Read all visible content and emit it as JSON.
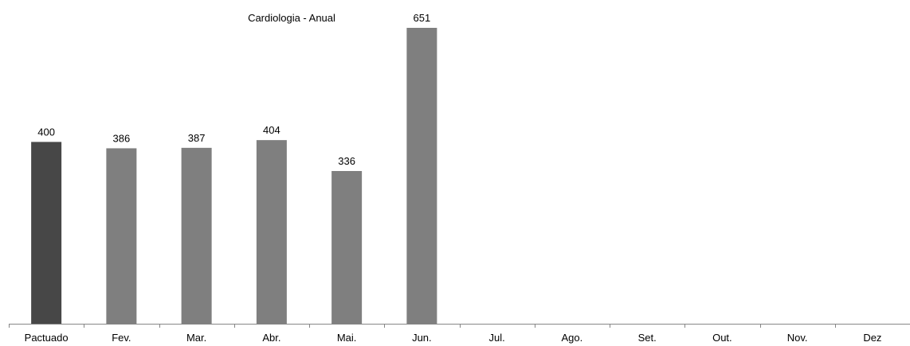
{
  "chart_data": {
    "type": "bar",
    "title": "Cardiologia - Anual",
    "xlabel": "",
    "ylabel": "",
    "categories": [
      "Pactuado",
      "Fev.",
      "Mar.",
      "Abr.",
      "Mai.",
      "Jun.",
      "Jul.",
      "Ago.",
      "Set.",
      "Out.",
      "Nov.",
      "Dez"
    ],
    "values": [
      400,
      386,
      387,
      404,
      336,
      651,
      null,
      null,
      null,
      null,
      null,
      null
    ],
    "value_labels": [
      "400",
      "386",
      "387",
      "404",
      "336",
      "651",
      null,
      null,
      null,
      null,
      null,
      null
    ],
    "ylim": [
      0,
      700
    ],
    "grid": false,
    "legend": "none",
    "colors": {
      "highlight_bar": "#474747",
      "bar": "#7f7f7f",
      "axis": "#868686",
      "text": "#000000"
    }
  }
}
